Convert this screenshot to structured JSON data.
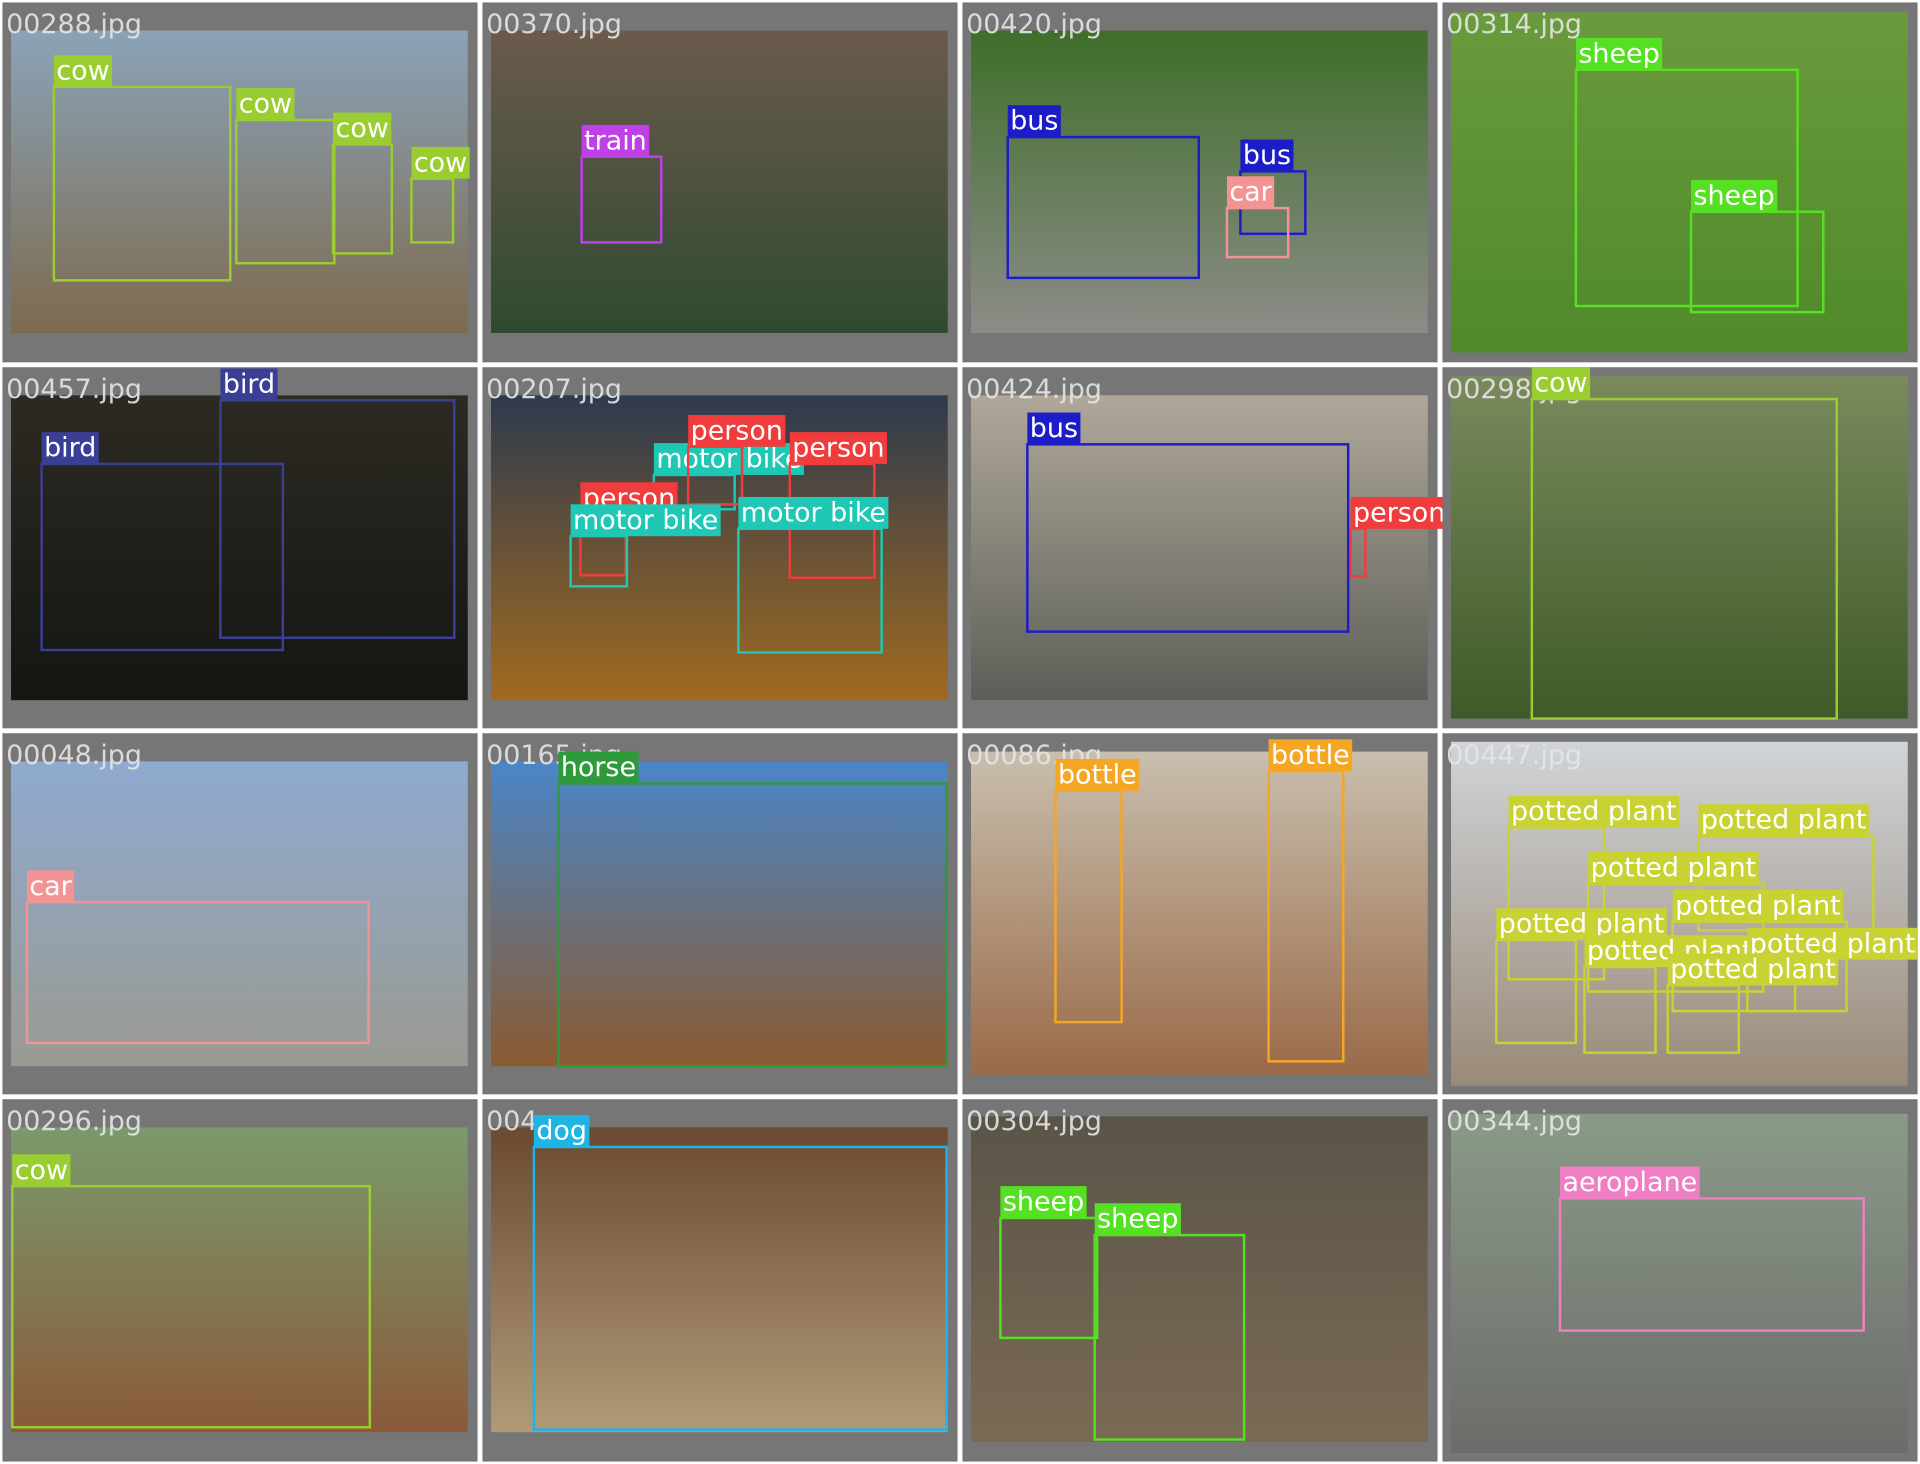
{
  "tiles": [
    {
      "filename": "00288.jpg",
      "boxes": [
        {
          "label": "cow",
          "color": "#9acd32"
        },
        {
          "label": "cow",
          "color": "#9acd32"
        },
        {
          "label": "cow",
          "color": "#9acd32"
        },
        {
          "label": "cow",
          "color": "#9acd32"
        }
      ]
    },
    {
      "filename": "00370.jpg",
      "boxes": [
        {
          "label": "train",
          "color": "#c040e8"
        }
      ]
    },
    {
      "filename": "00420.jpg",
      "boxes": [
        {
          "label": "bus",
          "color": "#1c1cc8"
        },
        {
          "label": "bus",
          "color": "#1c1cc8"
        },
        {
          "label": "car",
          "color": "#f29494"
        }
      ]
    },
    {
      "filename": "00314.jpg",
      "boxes": [
        {
          "label": "sheep",
          "color": "#56e024"
        },
        {
          "label": "sheep",
          "color": "#56e024"
        }
      ]
    },
    {
      "filename": "00457.jpg",
      "boxes": [
        {
          "label": "bird",
          "color": "#3a3f96"
        },
        {
          "label": "bird",
          "color": "#3a3f96"
        }
      ]
    },
    {
      "filename": "00207.jpg",
      "boxes": [
        {
          "label": "motor bike",
          "color": "#1ec8b4"
        },
        {
          "label": "person",
          "color": "#f03c3c"
        },
        {
          "label": "person",
          "color": "#f03c3c"
        },
        {
          "label": "person",
          "color": "#f03c3c"
        },
        {
          "label": "motor bike",
          "color": "#1ec8b4"
        },
        {
          "label": "motor bike",
          "color": "#1ec8b4"
        }
      ]
    },
    {
      "filename": "00424.jpg",
      "boxes": [
        {
          "label": "bus",
          "color": "#1c1cc8"
        },
        {
          "label": "person",
          "color": "#f03c3c"
        }
      ]
    },
    {
      "filename": "00298.jpg",
      "boxes": [
        {
          "label": "cow",
          "color": "#9acd32"
        }
      ]
    },
    {
      "filename": "00048.jpg",
      "boxes": [
        {
          "label": "car",
          "color": "#f29494"
        }
      ]
    },
    {
      "filename": "00165.jpg",
      "boxes": [
        {
          "label": "horse",
          "color": "#2e9a3c"
        }
      ]
    },
    {
      "filename": "00086.jpg",
      "boxes": [
        {
          "label": "bottle",
          "color": "#f5a623"
        },
        {
          "label": "bottle",
          "color": "#f5a623"
        }
      ]
    },
    {
      "filename": "00447.jpg",
      "boxes": [
        {
          "label": "potted plant",
          "color": "#c8d232"
        },
        {
          "label": "potted plant",
          "color": "#c8d232"
        },
        {
          "label": "potted plant",
          "color": "#c8d232"
        },
        {
          "label": "potted plant",
          "color": "#c8d232"
        },
        {
          "label": "potted plant",
          "color": "#c8d232"
        },
        {
          "label": "potted plant",
          "color": "#c8d232"
        },
        {
          "label": "potted plant",
          "color": "#c8d232"
        },
        {
          "label": "potted plant",
          "color": "#c8d232"
        }
      ]
    },
    {
      "filename": "00296.jpg",
      "boxes": [
        {
          "label": "cow",
          "color": "#9acd32"
        }
      ]
    },
    {
      "filename": "004",
      "boxes": [
        {
          "label": "dog",
          "color": "#1eb4e6"
        }
      ]
    },
    {
      "filename": "00304.jpg",
      "boxes": [
        {
          "label": "sheep",
          "color": "#56e024"
        },
        {
          "label": "sheep",
          "color": "#56e024"
        }
      ]
    },
    {
      "filename": "00344.jpg",
      "boxes": [
        {
          "label": "aeroplane",
          "color": "#f07ec4"
        }
      ]
    }
  ]
}
